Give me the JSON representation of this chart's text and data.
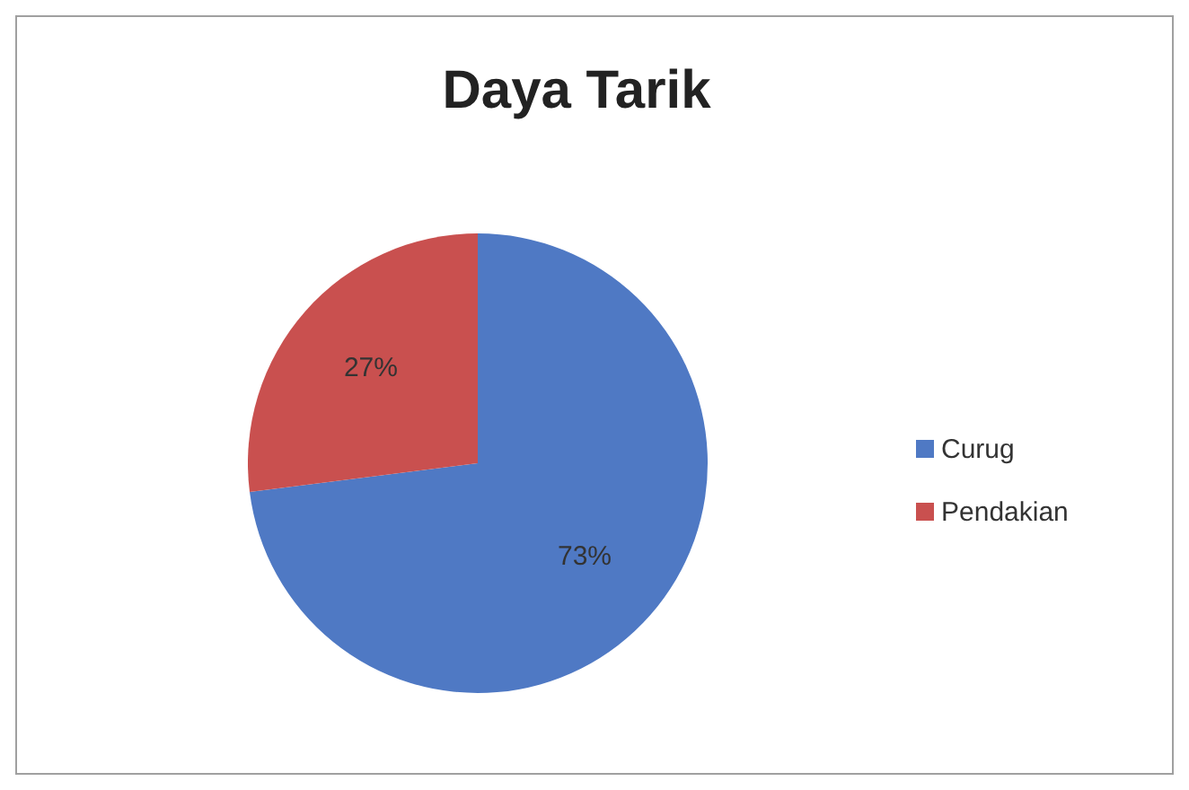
{
  "chart_data": {
    "type": "pie",
    "title": "Daya Tarik",
    "categories": [
      "Curug",
      "Pendakian"
    ],
    "values": [
      73,
      27
    ],
    "colors": [
      "#4f79c4",
      "#c9504f"
    ],
    "value_labels": [
      "73%",
      "27%"
    ],
    "legend": "right"
  }
}
